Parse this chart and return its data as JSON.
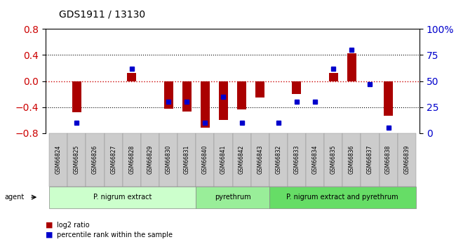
{
  "title": "GDS1911 / 13130",
  "samples": [
    "GSM66824",
    "GSM66825",
    "GSM66826",
    "GSM66827",
    "GSM66828",
    "GSM66829",
    "GSM66830",
    "GSM66831",
    "GSM66840",
    "GSM66841",
    "GSM66842",
    "GSM66843",
    "GSM66832",
    "GSM66833",
    "GSM66834",
    "GSM66835",
    "GSM66836",
    "GSM66837",
    "GSM66838",
    "GSM66839"
  ],
  "log2_ratio": [
    0.0,
    -0.48,
    0.0,
    0.0,
    0.12,
    0.0,
    -0.43,
    -0.47,
    -0.72,
    -0.6,
    -0.44,
    -0.25,
    0.0,
    -0.2,
    0.0,
    0.13,
    0.43,
    0.0,
    -0.53,
    0.0
  ],
  "pct_rank": [
    null,
    10,
    null,
    null,
    62,
    null,
    30,
    30,
    10,
    35,
    10,
    null,
    10,
    30,
    30,
    62,
    80,
    47,
    5,
    null
  ],
  "groups": [
    {
      "label": "P. nigrum extract",
      "start": 0,
      "end": 8,
      "color": "#ccffcc"
    },
    {
      "label": "pyrethrum",
      "start": 8,
      "end": 12,
      "color": "#99ee99"
    },
    {
      "label": "P. nigrum extract and pyrethrum",
      "start": 12,
      "end": 20,
      "color": "#66dd66"
    }
  ],
  "ylim_left": [
    -0.8,
    0.8
  ],
  "ylim_right": [
    0,
    100
  ],
  "bar_color": "#aa0000",
  "dot_color": "#0000cc",
  "zero_line_color": "#cc0000",
  "grid_color": "#000000",
  "bar_width": 0.5
}
